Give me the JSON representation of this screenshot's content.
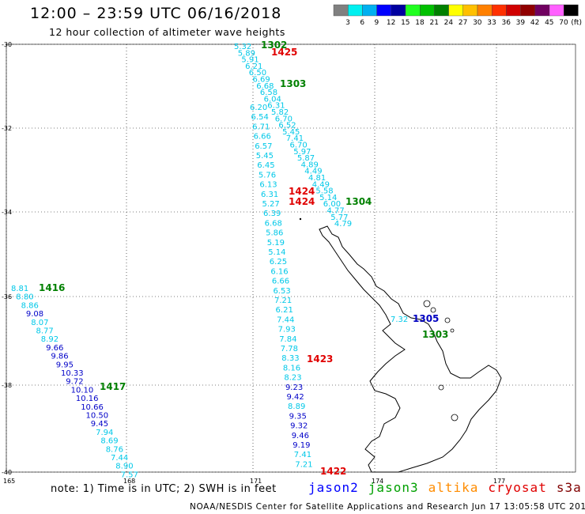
{
  "header": {
    "title": "12:00 – 23:59 UTC 06/16/2018",
    "subtitle": "12 hour collection of altimeter wave heights"
  },
  "legend": {
    "colors": [
      "#808080",
      "#00f0f0",
      "#00b0f0",
      "#0000ff",
      "#0000a0",
      "#20ff20",
      "#00c000",
      "#008000",
      "#ffff00",
      "#ffc000",
      "#ff8000",
      "#ff3000",
      "#d00000",
      "#900000",
      "#700060",
      "#ff60ff",
      "#000000"
    ],
    "labels": [
      "3",
      "6",
      "9",
      "12",
      "15",
      "18",
      "21",
      "24",
      "27",
      "30",
      "33",
      "36",
      "39",
      "42",
      "45",
      "70",
      "(ft)"
    ]
  },
  "axes": {
    "lat_labels": [
      "-30",
      "-32",
      "-34",
      "-36",
      "-38",
      "-40"
    ],
    "lon_labels": [
      "165",
      "168",
      "171",
      "174",
      "177"
    ]
  },
  "tracks": [
    {
      "satellite": "jason3",
      "times": [
        {
          "text": "1302",
          "color": "#008000"
        },
        {
          "text": "1303",
          "color": "#008000"
        },
        {
          "text": "1304",
          "color": "#008000"
        }
      ],
      "values": [
        "5.32",
        "5.89",
        "5.91",
        "6.21",
        "6.50",
        "6.69",
        "6.68",
        "6.58",
        "6.04",
        "6.31",
        "5.82",
        "6.70",
        "6.52",
        "5.45",
        "7.41",
        "6.70",
        "5.97",
        "5.87",
        "4.89",
        "4.49",
        "4.81",
        "4.49",
        "5.58",
        "5.14",
        "6.00",
        "4.77",
        "5.77",
        "4.79"
      ]
    },
    {
      "satellite": "cryosat",
      "times": [
        {
          "text": "1425",
          "color": "#e00000"
        },
        {
          "text": "1424",
          "color": "#e00000"
        },
        {
          "text": "1424",
          "color": "#e00000"
        },
        {
          "text": "1423",
          "color": "#e00000"
        },
        {
          "text": "1422",
          "color": "#e00000"
        }
      ],
      "values": [
        "6.20",
        "6.54",
        "6.71",
        "6.66",
        "6.57",
        "5.45",
        "6.45",
        "5.76",
        "6.13",
        "6.31",
        "5.27",
        "6.39",
        "6.68",
        "5.86",
        "5.19",
        "5.14",
        "6.25",
        "6.16",
        "6.66",
        "6.53",
        "7.21",
        "6.21",
        "7.44",
        "7.93",
        "7.84",
        "7.78",
        "8.33",
        "8.16",
        "8.23",
        "9.23",
        "9.42",
        "8.89",
        "9.35",
        "9.32",
        "9.46",
        "9.19",
        "7.41",
        "7.21"
      ]
    },
    {
      "satellite": "jason2",
      "times": [
        {
          "text": "1305",
          "color": "#0000c0"
        }
      ],
      "values": [
        "7.32"
      ]
    },
    {
      "satellite": "jason3",
      "times": [
        {
          "text": "1416",
          "color": "#008000"
        },
        {
          "text": "1417",
          "color": "#008000"
        }
      ],
      "values": [
        "8.81",
        "8.80",
        "8.86",
        "9.08",
        "8.07",
        "8.77",
        "8.92",
        "9.66",
        "9.86",
        "9.95",
        "10.33",
        "9.72",
        "10.10",
        "10.16",
        "10.66",
        "10.50",
        "9.45",
        "7.94",
        "8.69",
        "8.76",
        "7.44",
        "8.90",
        "7.57"
      ]
    }
  ],
  "extra_time": {
    "text": "1303",
    "color": "#008000"
  },
  "footer": {
    "note": "note: 1) Time is in UTC; 2) SWH is in feet",
    "satellites": [
      {
        "name": "jason2",
        "color": "#0000ff"
      },
      {
        "name": "jason3",
        "color": "#00a000"
      },
      {
        "name": "altika",
        "color": "#ff8c00"
      },
      {
        "name": "cryosat",
        "color": "#e00000"
      },
      {
        "name": "s3a",
        "color": "#800000"
      }
    ],
    "credit": "NOAA/NESDIS Center for Satellite Applications and Research   Jun 17 13:05:58 UTC 2018"
  }
}
